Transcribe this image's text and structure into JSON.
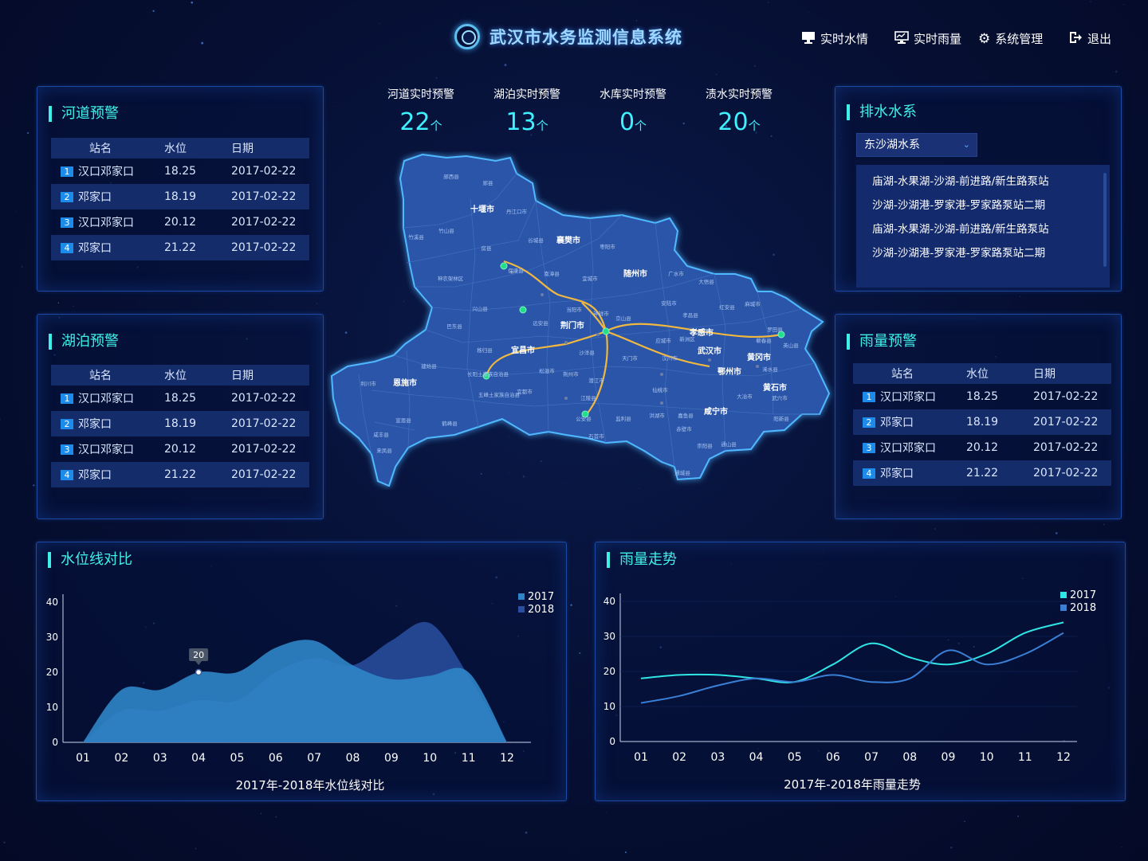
{
  "header": {
    "title": "武汉市水务监测信息系统",
    "nav": [
      {
        "label": "实时水情",
        "icon": "monitor-icon"
      },
      {
        "label": "实时雨量",
        "icon": "chart-monitor-icon"
      },
      {
        "label": "系统管理",
        "icon": "gear-icon"
      },
      {
        "label": "退出",
        "icon": "logout-icon"
      }
    ]
  },
  "table_headers": {
    "station": "站名",
    "level": "水位",
    "date": "日期"
  },
  "river_warning": {
    "title": "河道预警",
    "rows": [
      {
        "no": "1",
        "station": "汉口邓家口",
        "level": "18.25",
        "date": "2017-02-22"
      },
      {
        "no": "2",
        "station": "邓家口",
        "level": "18.19",
        "date": "2017-02-22"
      },
      {
        "no": "3",
        "station": "汉口邓家口",
        "level": "20.12",
        "date": "2017-02-22"
      },
      {
        "no": "4",
        "station": "邓家口",
        "level": "21.22",
        "date": "2017-02-22"
      }
    ]
  },
  "lake_warning": {
    "title": "湖泊预警",
    "rows": [
      {
        "no": "1",
        "station": "汉口邓家口",
        "level": "18.25",
        "date": "2017-02-22"
      },
      {
        "no": "2",
        "station": "邓家口",
        "level": "18.19",
        "date": "2017-02-22"
      },
      {
        "no": "3",
        "station": "汉口邓家口",
        "level": "20.12",
        "date": "2017-02-22"
      },
      {
        "no": "4",
        "station": "邓家口",
        "level": "21.22",
        "date": "2017-02-22"
      }
    ]
  },
  "rain_warning": {
    "title": "雨量预警",
    "rows": [
      {
        "no": "1",
        "station": "汉口邓家口",
        "level": "18.25",
        "date": "2017-02-22"
      },
      {
        "no": "2",
        "station": "邓家口",
        "level": "18.19",
        "date": "2017-02-22"
      },
      {
        "no": "3",
        "station": "汉口邓家口",
        "level": "20.12",
        "date": "2017-02-22"
      },
      {
        "no": "4",
        "station": "邓家口",
        "level": "21.22",
        "date": "2017-02-22"
      }
    ]
  },
  "kpis": [
    {
      "label": "河道实时预警",
      "value": "22",
      "unit": "个"
    },
    {
      "label": "湖泊实时预警",
      "value": "13",
      "unit": "个"
    },
    {
      "label": "水库实时预警",
      "value": "0",
      "unit": "个"
    },
    {
      "label": "渍水实时预警",
      "value": "20",
      "unit": "个"
    }
  ],
  "drainage": {
    "title": "排水水系",
    "selected": "东沙湖水系",
    "items": [
      "庙湖-水果湖-沙湖-前进路/新生路泵站",
      "沙湖-沙湖港-罗家港-罗家路泵站二期",
      "庙湖-水果湖-沙湖-前进路/新生路泵站",
      "沙湖-沙湖港-罗家港-罗家路泵站二期"
    ]
  },
  "map": {
    "cities": [
      "十堰市",
      "襄樊市",
      "随州市",
      "荆门市",
      "孝感市",
      "武汉市",
      "宜昌市",
      "恩施市",
      "黄冈市",
      "鄂州市",
      "黄石市",
      "咸宁市"
    ],
    "counties": [
      "郧西县",
      "郧县",
      "丹江口市",
      "竹溪县",
      "竹山县",
      "房县",
      "保康县",
      "谷城县",
      "枣阳市",
      "宜城市",
      "南漳县",
      "广水市",
      "大悟县",
      "红安县",
      "麻城市",
      "神农架林区",
      "兴山县",
      "远安县",
      "钟祥市",
      "京山县",
      "安陆市",
      "应城市",
      "孝昌县",
      "罗田县",
      "英山县",
      "浠水县",
      "巴东县",
      "秭归县",
      "长阳土家族自治县",
      "当阳市",
      "天门市",
      "汉川市",
      "蕲春县",
      "武穴市",
      "建始县",
      "利川市",
      "五峰土家族自治县",
      "宜都市",
      "松滋市",
      "公安县",
      "石首市",
      "监利县",
      "洪湖市",
      "嘉鱼县",
      "赤壁市",
      "通山县",
      "崇阳县",
      "通城县",
      "阳新县",
      "大冶市",
      "咸丰县",
      "宣恩县",
      "来凤县",
      "鹤峰县",
      "潜江市",
      "沙洋县",
      "荆州市",
      "江陵县",
      "仙桃市",
      "新洲区"
    ]
  },
  "water_level_chart": {
    "title": "水位线对比",
    "footer": "2017年-2018年水位线对比",
    "tooltip_value": "20",
    "chart_data": {
      "type": "area",
      "categories": [
        "01",
        "02",
        "03",
        "04",
        "05",
        "06",
        "07",
        "08",
        "09",
        "10",
        "11",
        "12"
      ],
      "ylim": [
        0,
        40
      ],
      "yticks": [
        "0",
        "10",
        "20",
        "30",
        "40"
      ],
      "series": [
        {
          "name": "2017",
          "color": "#2f85c8",
          "values": [
            0,
            15,
            15,
            20,
            20,
            27,
            29,
            22,
            18,
            19,
            20,
            0
          ]
        },
        {
          "name": "2018",
          "color": "#2a4fa0",
          "values": [
            0,
            9,
            9,
            12,
            12,
            20,
            24,
            22,
            29,
            34,
            19,
            0
          ]
        }
      ],
      "legend": "top-right",
      "grid": false
    }
  },
  "rain_chart": {
    "title": "雨量走势",
    "footer": "2017年-2018年雨量走势",
    "chart_data": {
      "type": "line",
      "categories": [
        "01",
        "02",
        "03",
        "04",
        "05",
        "06",
        "07",
        "08",
        "09",
        "10",
        "11",
        "12"
      ],
      "ylim": [
        0,
        40
      ],
      "yticks": [
        "0",
        "10",
        "20",
        "30",
        "40"
      ],
      "series": [
        {
          "name": "2017",
          "color": "#2ee6e6",
          "values": [
            18,
            19,
            19,
            18,
            17,
            22,
            28,
            24,
            22,
            25,
            31,
            34
          ]
        },
        {
          "name": "2018",
          "color": "#3a7fd6",
          "values": [
            11,
            13,
            16,
            18,
            17,
            19,
            17,
            18,
            26,
            22,
            25,
            31
          ]
        }
      ],
      "legend": "top-right",
      "grid": false
    }
  }
}
